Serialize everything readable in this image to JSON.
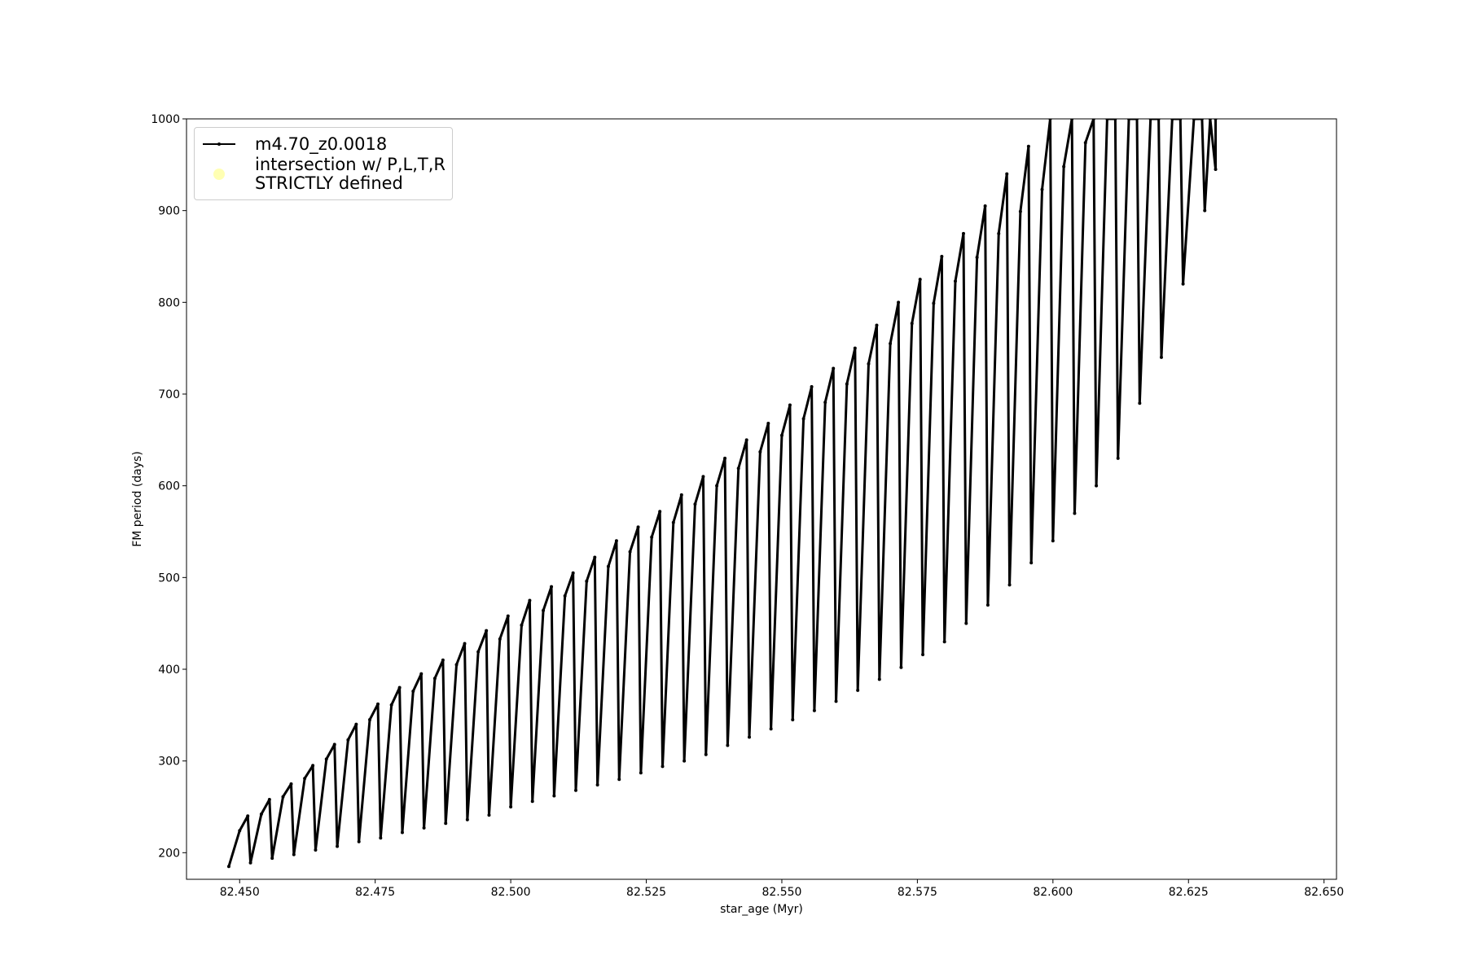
{
  "chart_data": {
    "type": "line",
    "xlabel": "star_age (Myr)",
    "ylabel": "FM period (days)",
    "xlim": [
      82.4402,
      82.6523
    ],
    "ylim": [
      171,
      1000
    ],
    "xticks": [
      {
        "value": 82.45,
        "label": "82.450"
      },
      {
        "value": 82.475,
        "label": "82.475"
      },
      {
        "value": 82.5,
        "label": "82.500"
      },
      {
        "value": 82.525,
        "label": "82.525"
      },
      {
        "value": 82.55,
        "label": "82.550"
      },
      {
        "value": 82.575,
        "label": "82.575"
      },
      {
        "value": 82.6,
        "label": "82.600"
      },
      {
        "value": 82.625,
        "label": "82.625"
      },
      {
        "value": 82.65,
        "label": "82.650"
      }
    ],
    "yticks": [
      200,
      300,
      400,
      500,
      600,
      700,
      800,
      900,
      1000
    ],
    "legend": "upper left",
    "series": [
      {
        "name": "m4.70_z0.0018",
        "color": "#000000",
        "marker": true,
        "x": [
          82.448,
          82.45,
          82.4515,
          82.452,
          82.454,
          82.4555,
          82.456,
          82.458,
          82.4595,
          82.46,
          82.462,
          82.4635,
          82.464,
          82.466,
          82.4675,
          82.468,
          82.47,
          82.4715,
          82.472,
          82.474,
          82.4755,
          82.476,
          82.478,
          82.4795,
          82.48,
          82.482,
          82.4835,
          82.484,
          82.486,
          82.4875,
          82.488,
          82.49,
          82.4915,
          82.492,
          82.494,
          82.4955,
          82.496,
          82.498,
          82.4995,
          82.5,
          82.502,
          82.5035,
          82.504,
          82.506,
          82.5075,
          82.508,
          82.51,
          82.5115,
          82.512,
          82.514,
          82.5155,
          82.516,
          82.518,
          82.5195,
          82.52,
          82.522,
          82.5235,
          82.524,
          82.526,
          82.5275,
          82.528,
          82.53,
          82.5315,
          82.532,
          82.534,
          82.5355,
          82.536,
          82.538,
          82.5395,
          82.54,
          82.542,
          82.5435,
          82.544,
          82.546,
          82.5475,
          82.548,
          82.55,
          82.5515,
          82.552,
          82.554,
          82.5555,
          82.556,
          82.558,
          82.5595,
          82.56,
          82.562,
          82.5635,
          82.564,
          82.566,
          82.5675,
          82.568,
          82.57,
          82.5715,
          82.572,
          82.574,
          82.5755,
          82.576,
          82.578,
          82.5795,
          82.58,
          82.582,
          82.5835,
          82.584,
          82.586,
          82.5875,
          82.588,
          82.59,
          82.5915,
          82.592,
          82.594,
          82.5955,
          82.596,
          82.598,
          82.5995,
          82.6,
          82.602,
          82.6035,
          82.604,
          82.606,
          82.6075,
          82.608,
          82.61,
          82.6115,
          82.612,
          82.614,
          82.6155,
          82.616,
          82.618,
          82.6195,
          82.62,
          82.622,
          82.6235,
          82.624,
          82.626,
          82.6275,
          82.628,
          82.629,
          82.63,
          82.63
        ],
        "values": [
          185,
          224,
          240,
          189,
          242,
          258,
          194,
          261,
          275,
          198,
          281,
          295,
          203,
          302,
          318,
          207,
          323,
          340,
          212,
          345,
          362,
          216,
          361,
          380,
          222,
          376,
          395,
          227,
          390,
          410,
          232,
          405,
          428,
          236,
          419,
          442,
          241,
          433,
          458,
          250,
          448,
          475,
          256,
          464,
          490,
          262,
          480,
          505,
          268,
          496,
          522,
          274,
          512,
          540,
          280,
          528,
          555,
          287,
          544,
          572,
          294,
          560,
          590,
          300,
          580,
          610,
          307,
          600,
          630,
          317,
          619,
          650,
          326,
          637,
          668,
          335,
          655,
          688,
          345,
          673,
          708,
          355,
          691,
          728,
          365,
          711,
          750,
          377,
          733,
          775,
          389,
          755,
          800,
          402,
          777,
          825,
          416,
          799,
          850,
          430,
          823,
          875,
          450,
          849,
          905,
          470,
          875,
          940,
          492,
          899,
          970,
          516,
          923,
          1000,
          540,
          948,
          1000,
          570,
          974,
          1000,
          600,
          1000,
          1000,
          630,
          1000,
          1000,
          690,
          1000,
          1000,
          740,
          1000,
          1000,
          820,
          1000,
          1000,
          900,
          1000,
          945,
          1000
        ]
      },
      {
        "name": "intersection w/ P,L,T,R\nSTRICTLY defined",
        "color": "#ffffb3",
        "marker": true,
        "x": [],
        "values": []
      }
    ]
  }
}
